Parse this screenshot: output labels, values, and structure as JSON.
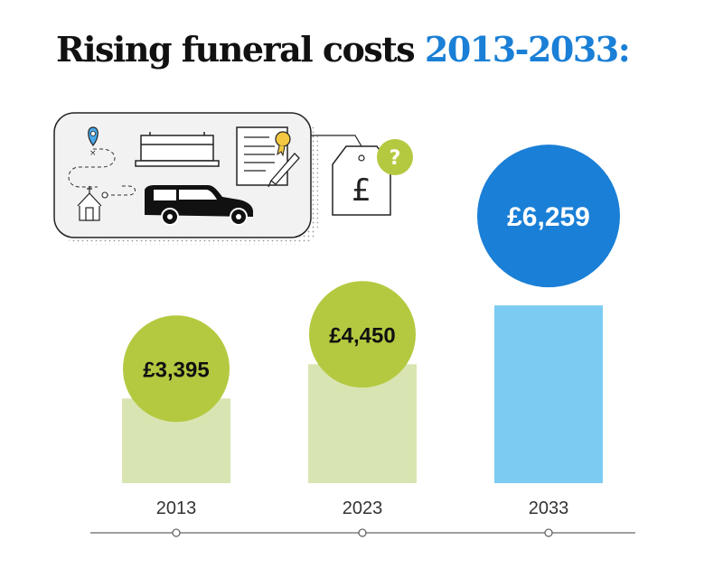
{
  "title": {
    "main": "Rising funeral costs",
    "highlight": "2013-2033:"
  },
  "illustration": {
    "icons": [
      "location-pin-icon",
      "coffin-icon",
      "certificate-icon",
      "pen-icon",
      "church-icon",
      "hearse-icon",
      "price-tag-icon"
    ],
    "tag_symbol": "£",
    "badge_symbol": "?"
  },
  "colors": {
    "title_highlight": "#1a7fd6",
    "green_circle": "#b5c940",
    "light_green_bar": "#d8e5b2",
    "blue_circle": "#1a7fd6",
    "light_blue_bar": "#7ccbf2",
    "timeline": "#666666"
  },
  "chart_data": {
    "type": "bar",
    "categories": [
      "2013",
      "2023",
      "2033"
    ],
    "values": [
      3395,
      4450,
      6259
    ],
    "value_labels": [
      "£3,395",
      "£4,450",
      "£6,259"
    ],
    "title": "Rising funeral costs 2013-2033:",
    "xlabel": "",
    "ylabel": "",
    "ylim": [
      0,
      6500
    ],
    "grid": false,
    "legend": "none"
  }
}
